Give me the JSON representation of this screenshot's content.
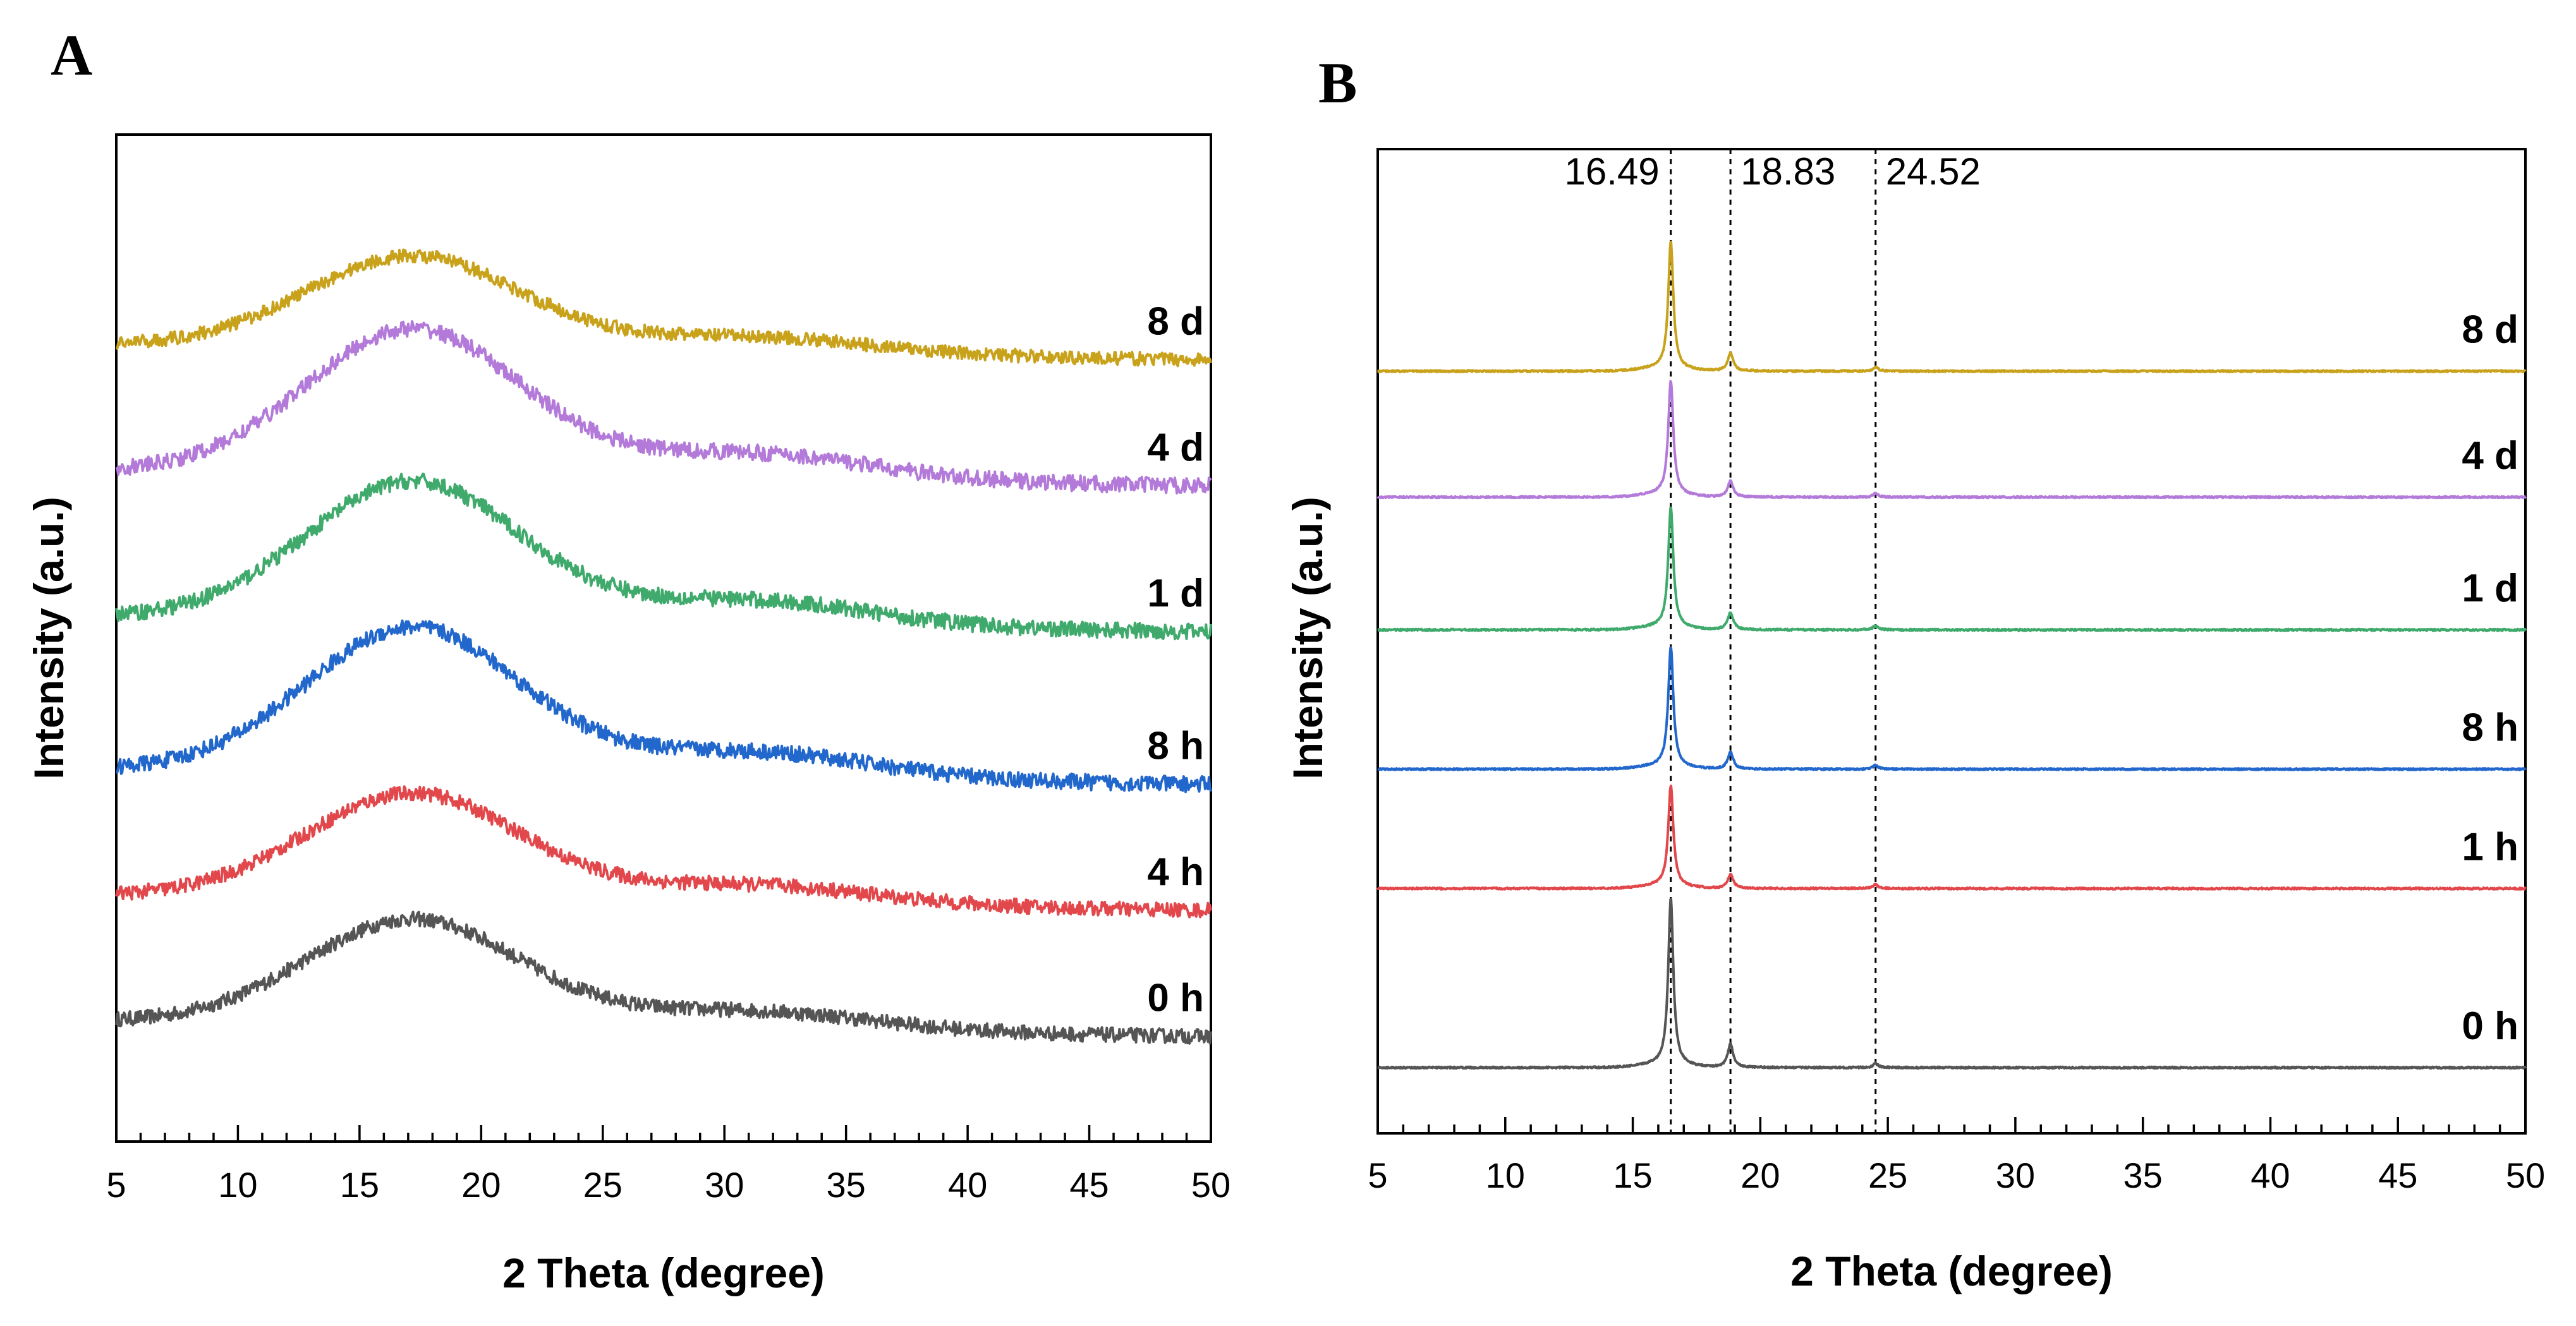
{
  "chart_data": [
    {
      "panel": "A",
      "type": "line",
      "title": "",
      "xlabel": "2 Theta (degree)",
      "ylabel": "Intensity (a.u.)",
      "xlim": [
        5,
        50
      ],
      "xticks": [
        5,
        10,
        15,
        20,
        25,
        30,
        35,
        40,
        45,
        50
      ],
      "pattern": "amorphous",
      "series": [
        {
          "name": "0 h",
          "color": "#555555",
          "offset": 0,
          "peak_height": 16,
          "noise": 2.2
        },
        {
          "name": "4 h",
          "color": "#e2474b",
          "offset": 19,
          "peak_height": 16,
          "noise": 2.2
        },
        {
          "name": "8 h",
          "color": "#2267cc",
          "offset": 38,
          "peak_height": 22,
          "noise": 2.4
        },
        {
          "name": "1 d",
          "color": "#3faa6c",
          "offset": 61,
          "peak_height": 21,
          "noise": 2.4
        },
        {
          "name": "4 d",
          "color": "#b37ad9",
          "offset": 83,
          "peak_height": 22,
          "noise": 2.4
        },
        {
          "name": "8 d",
          "color": "#c9a21c",
          "offset": 102,
          "peak_height": 14,
          "noise": 2.0
        }
      ]
    },
    {
      "panel": "B",
      "type": "line",
      "title": "",
      "xlabel": "2 Theta (degree)",
      "ylabel": "Intensity (a.u.)",
      "xlim": [
        5,
        50
      ],
      "xticks": [
        5,
        10,
        15,
        20,
        25,
        30,
        35,
        40,
        45,
        50
      ],
      "pattern": "crystalline",
      "reference_lines": [
        16.49,
        18.83,
        24.52
      ],
      "reference_labels": [
        "16.49",
        "18.83",
        "24.52"
      ],
      "series": [
        {
          "name": "0 h",
          "color": "#555555",
          "offset": 0,
          "peak_height": 25
        },
        {
          "name": "1 h",
          "color": "#e2474b",
          "offset": 27,
          "peak_height": 15
        },
        {
          "name": "8 h",
          "color": "#2267cc",
          "offset": 45,
          "peak_height": 18
        },
        {
          "name": "1 d",
          "color": "#3faa6c",
          "offset": 66,
          "peak_height": 18
        },
        {
          "name": "4 d",
          "color": "#b37ad9",
          "offset": 86,
          "peak_height": 17
        },
        {
          "name": "8 d",
          "color": "#c9a21c",
          "offset": 105,
          "peak_height": 19
        }
      ]
    }
  ],
  "panel_a": {
    "letter": "A"
  },
  "panel_b": {
    "letter": "B"
  }
}
